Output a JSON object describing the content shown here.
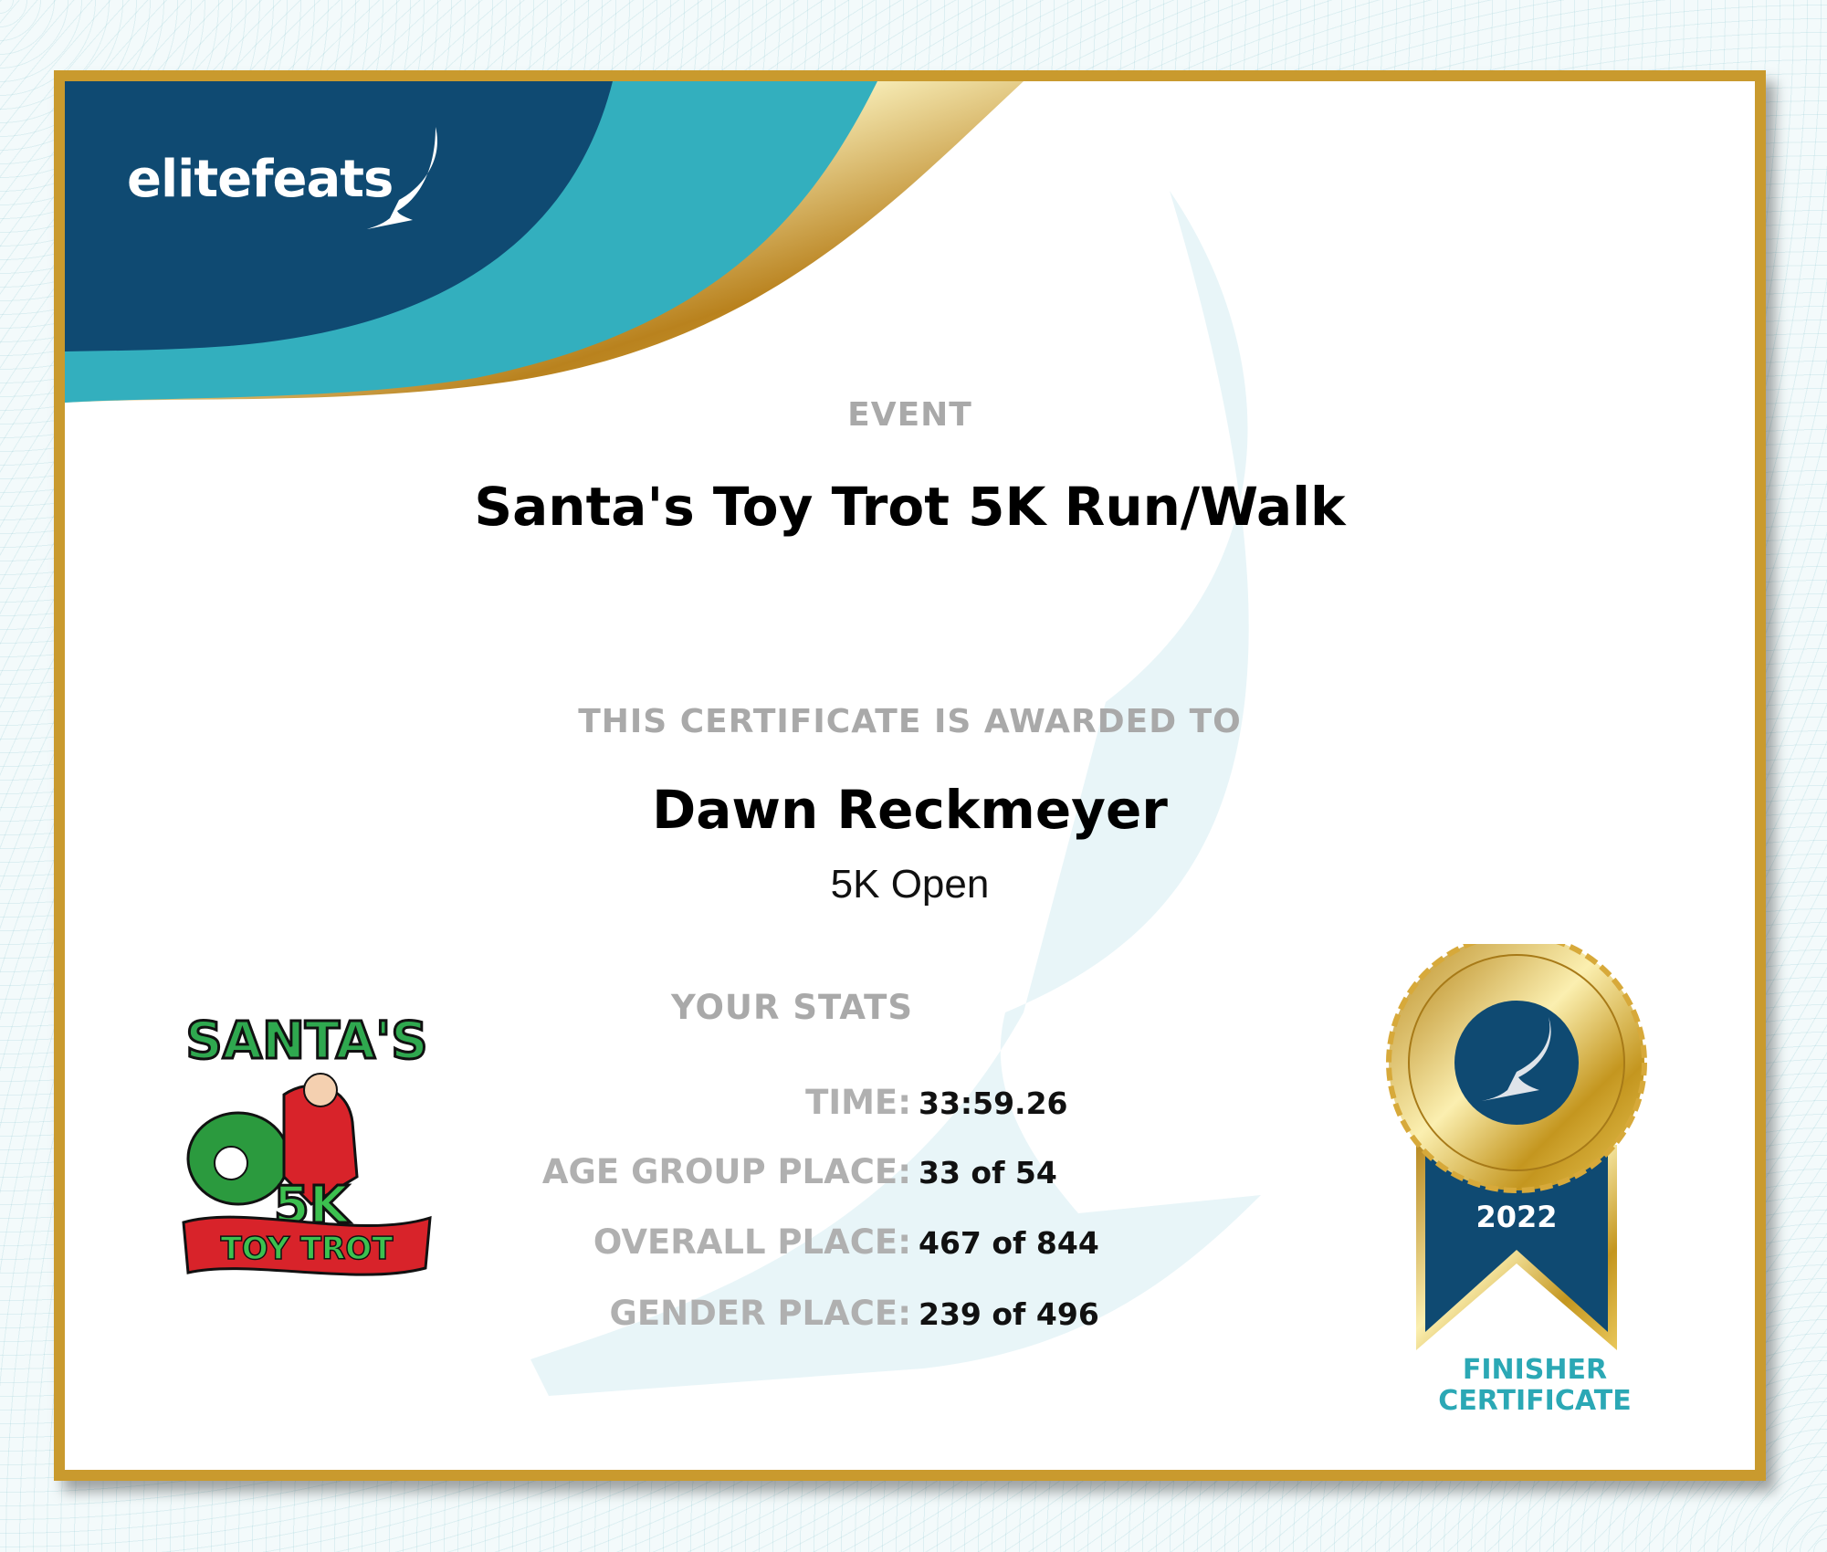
{
  "brand": {
    "logo_text": "elitefeats"
  },
  "event": {
    "label": "EVENT",
    "name": "Santa's Toy Trot 5K Run/Walk"
  },
  "award": {
    "label": "THIS CERTIFICATE IS AWARDED TO",
    "recipient": "Dawn Reckmeyer",
    "division": "5K Open"
  },
  "stats": {
    "heading": "YOUR STATS",
    "rows": [
      {
        "label": "TIME:",
        "value": "33:59.26"
      },
      {
        "label": "AGE GROUP PLACE:",
        "value": "33 of 54"
      },
      {
        "label": "OVERALL PLACE:",
        "value": "467 of 844"
      },
      {
        "label": "GENDER PLACE:",
        "value": "239 of 496"
      }
    ]
  },
  "event_logo": {
    "line1": "SANTA'S",
    "line2": "5K",
    "line3": "TOY TROT"
  },
  "badge": {
    "year": "2022",
    "line1": "FINISHER",
    "line2": "CERTIFICATE"
  },
  "colors": {
    "navy": "#0f4a72",
    "teal": "#33afbe",
    "gold": "#c99a2e",
    "label_gray": "#a9a9a9"
  }
}
